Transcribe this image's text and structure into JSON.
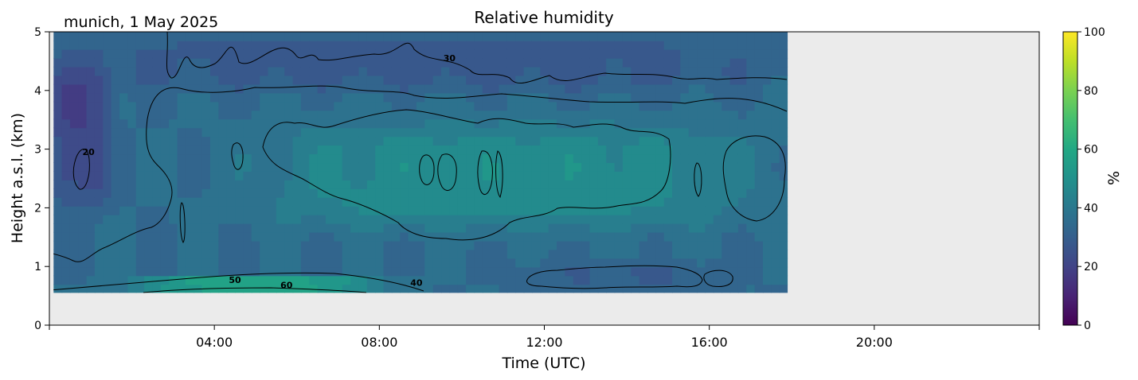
{
  "chart_data": {
    "type": "heatmap",
    "title": "Relative humidity",
    "subtitle": "munich, 1 May 2025",
    "xlabel": "Time (UTC)",
    "ylabel": "Height a.s.l. (km)",
    "xlim": [
      0,
      24
    ],
    "ylim": [
      0,
      5
    ],
    "xticks": [
      4,
      8,
      12,
      16,
      20
    ],
    "xtick_labels": [
      "04:00",
      "08:00",
      "12:00",
      "16:00",
      "20:00"
    ],
    "yticks": [
      0,
      1,
      2,
      3,
      4,
      5
    ],
    "ytick_labels": [
      "0",
      "1",
      "2",
      "3",
      "4",
      "5"
    ],
    "colorbar": {
      "label": "%",
      "range": [
        0,
        100
      ],
      "ticks": [
        0,
        20,
        40,
        60,
        80,
        100
      ],
      "tick_labels": [
        "0",
        "20",
        "40",
        "60",
        "80",
        "100"
      ],
      "colormap": "viridis"
    },
    "data_extent": {
      "time_hours": [
        0.1,
        17.9
      ],
      "height_km": [
        0.55,
        5
      ]
    },
    "no_data_color": "#ebebeb",
    "grid": false,
    "contour_labels": [
      {
        "text": "50",
        "time": 4.5,
        "height": 0.72
      },
      {
        "text": "60",
        "time": 5.75,
        "height": 0.63
      },
      {
        "text": "40",
        "time": 8.9,
        "height": 0.67
      },
      {
        "text": "30",
        "time": 9.7,
        "height": 4.5
      },
      {
        "text": "20",
        "time": 0.95,
        "height": 2.9
      }
    ],
    "fields": {
      "background_rh": 35,
      "description_features": [
        {
          "name": "upper-dry-layer",
          "time": [
            0,
            18
          ],
          "height": [
            4.0,
            5.0
          ],
          "rh": 28
        },
        {
          "name": "dry-pocket-left",
          "time": [
            0,
            1.5
          ],
          "height": [
            2.0,
            4.5
          ],
          "rh": 20
        },
        {
          "name": "moist-core-midday",
          "time": [
            5,
            17
          ],
          "height": [
            1.6,
            3.5
          ],
          "rh": 48
        },
        {
          "name": "moist-surface-layer",
          "time": [
            2,
            8
          ],
          "height": [
            0.55,
            0.85
          ],
          "rh": 58
        },
        {
          "name": "dry-low-afternoon",
          "time": [
            11.5,
            16.5
          ],
          "height": [
            0.6,
            1.1
          ],
          "rh": 30
        }
      ]
    }
  }
}
